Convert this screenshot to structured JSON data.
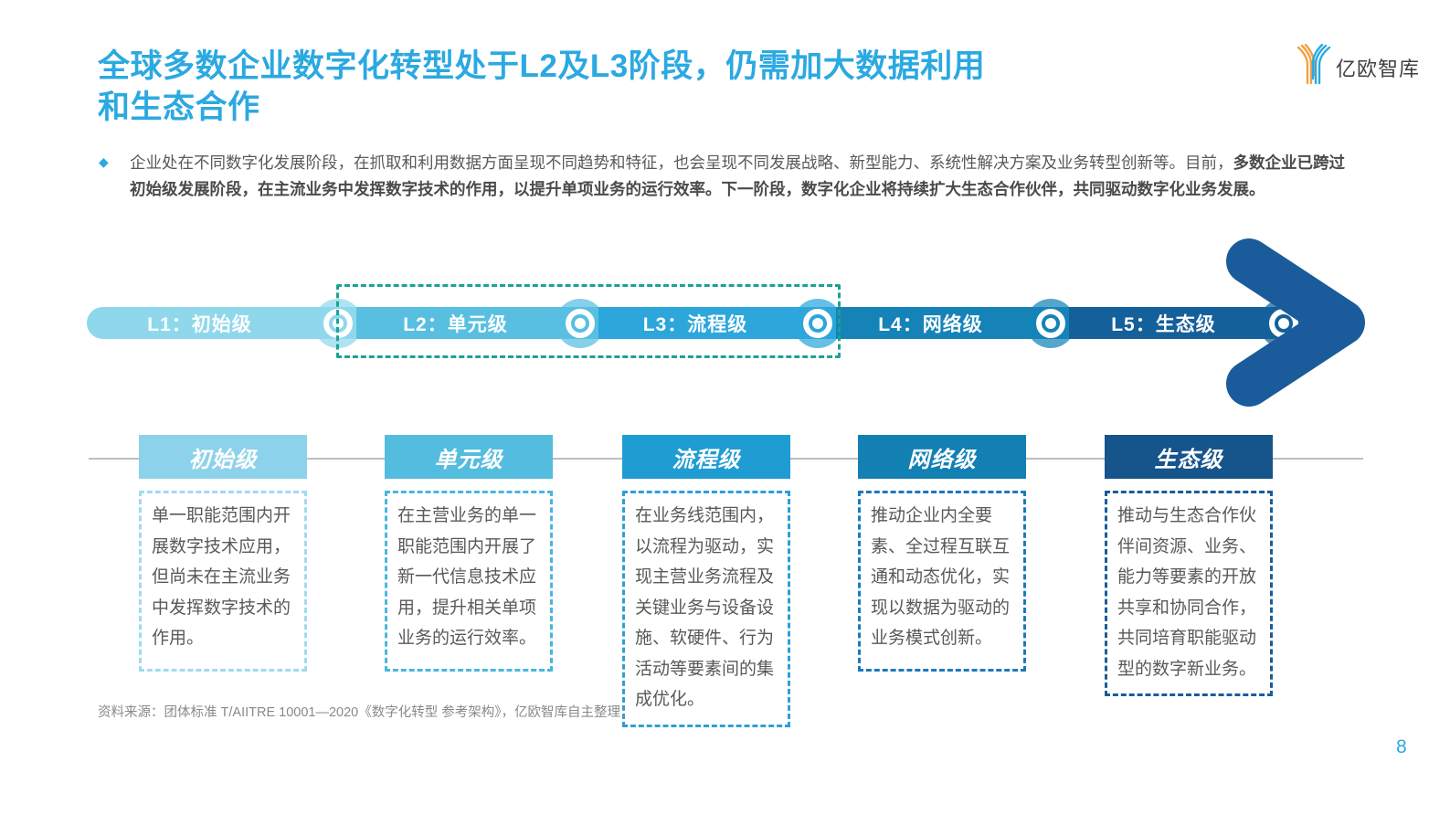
{
  "title": {
    "line1": "全球多数企业数字化转型处于L2及L3阶段，仍需加大数据利用",
    "line2": "和生态合作",
    "color": "#2BA9E1"
  },
  "logo": {
    "text": "亿欧智库",
    "orange": "#F5A03C",
    "blue": "#2BA9E1"
  },
  "intro": {
    "bullet": "◆",
    "bullet_color": "#2BA9E1",
    "normal": "企业处在不同数字化发展阶段，在抓取和利用数据方面呈现不同趋势和特征，也会呈现不同发展战略、新型能力、系统性解决方案及业务转型创新等。目前，",
    "bold": "多数企业已跨过初始级发展阶段，在主流业务中发挥数字技术的作用，以提升单项业务的运行效率。下一阶段，数字化企业将持续扩大生态合作伙伴，共同驱动数字化业务发展。"
  },
  "timeline": {
    "stages": [
      {
        "label": "L1：初始级",
        "color": "#8FD8EB"
      },
      {
        "label": "L2：单元级",
        "color": "#58BFE1"
      },
      {
        "label": "L3：流程级",
        "color": "#2CA6DB"
      },
      {
        "label": "L4：网络级",
        "color": "#1583B8"
      },
      {
        "label": "L5：生态级",
        "color": "#14609B"
      }
    ],
    "highlight_box_color": "#1BA294",
    "arrow_color": "#1A5B9B"
  },
  "cards": [
    {
      "title": "初始级",
      "header_color": "#8CD2EA",
      "border_color": "#9FDBF1",
      "body": "单一职能范围内开展数字技术应用，但尚未在主流业务中发挥数字技术的作用。"
    },
    {
      "title": "单元级",
      "header_color": "#54BCDE",
      "border_color": "#49B6DC",
      "body": "在主营业务的单一职能范围内开展了新一代信息技术应用，提升相关单项业务的运行效率。"
    },
    {
      "title": "流程级",
      "header_color": "#1F9CD2",
      "border_color": "#2E9FD4",
      "body": "在业务线范围内，以流程为驱动，实现主营业务流程及关键业务与设备设施、软硬件、行为活动等要素间的集成优化。"
    },
    {
      "title": "网络级",
      "header_color": "#1380B4",
      "border_color": "#1A7AB8",
      "body": "推动企业内全要素、全过程互联互通和动态优化，实现以数据为驱动的业务模式创新。"
    },
    {
      "title": "生态级",
      "header_color": "#16548C",
      "border_color": "#1A5C9B",
      "body": "推动与生态合作伙伴间资源、业务、能力等要素的开放共享和协同合作，共同培育职能驱动型的数字新业务。"
    }
  ],
  "footer": {
    "source": "资料来源：团体标准 T/AIITRE 10001—2020《数字化转型 参考架构》，亿欧智库自主整理；",
    "page_number": "8",
    "page_number_color": "#2BA9E1"
  }
}
